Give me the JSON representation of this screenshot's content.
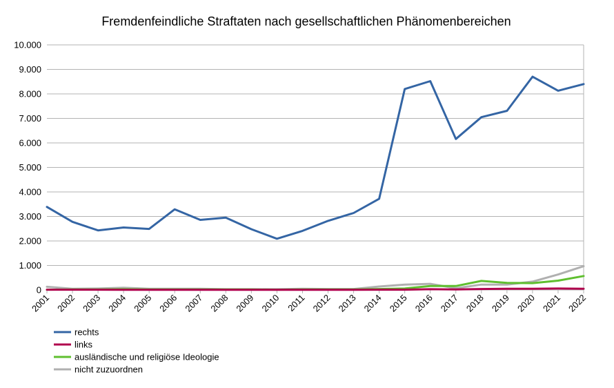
{
  "chart_data": {
    "type": "line",
    "title": "Fremdenfeindliche Straftaten nach gesellschaftlichen Phänomenbereichen",
    "xlabel": "",
    "ylabel": "",
    "x": [
      "2001",
      "2002",
      "2003",
      "2004",
      "2005",
      "2006",
      "2007",
      "2008",
      "2009",
      "2010",
      "2011",
      "2012",
      "2013",
      "2014",
      "2015",
      "2016",
      "2017",
      "2018",
      "2019",
      "2020",
      "2021",
      "2022"
    ],
    "ylim": [
      0,
      10000
    ],
    "yticks": [
      0,
      1000,
      2000,
      3000,
      4000,
      5000,
      6000,
      7000,
      8000,
      9000,
      10000
    ],
    "ytick_labels": [
      "0",
      "1.000",
      "2.000",
      "3.000",
      "4.000",
      "5.000",
      "6.000",
      "7.000",
      "8.000",
      "9.000",
      "10.000"
    ],
    "grid": "horizontal",
    "legend_position": "bottom-left",
    "series": [
      {
        "name": "rechts",
        "color": "#3465a4",
        "values": [
          3390,
          2780,
          2430,
          2550,
          2490,
          3290,
          2860,
          2950,
          2480,
          2090,
          2410,
          2820,
          3140,
          3720,
          8200,
          8520,
          6160,
          7050,
          7310,
          8700,
          8130,
          8400
        ]
      },
      {
        "name": "links",
        "color": "#b0004d",
        "values": [
          10,
          10,
          10,
          5,
          5,
          5,
          5,
          5,
          5,
          5,
          5,
          5,
          5,
          10,
          10,
          30,
          20,
          40,
          50,
          50,
          60,
          50
        ]
      },
      {
        "name": "ausländische und religiöse Ideologie",
        "color": "#5fbf2f",
        "values": [
          10,
          20,
          20,
          30,
          20,
          20,
          20,
          20,
          20,
          10,
          20,
          20,
          20,
          40,
          60,
          160,
          160,
          370,
          290,
          280,
          380,
          570
        ]
      },
      {
        "name": "nicht zuzuordnen",
        "color": "#b0b0b0",
        "values": [
          130,
          50,
          60,
          90,
          50,
          50,
          50,
          30,
          30,
          30,
          50,
          40,
          40,
          140,
          220,
          250,
          70,
          220,
          220,
          340,
          630,
          970
        ]
      }
    ]
  }
}
